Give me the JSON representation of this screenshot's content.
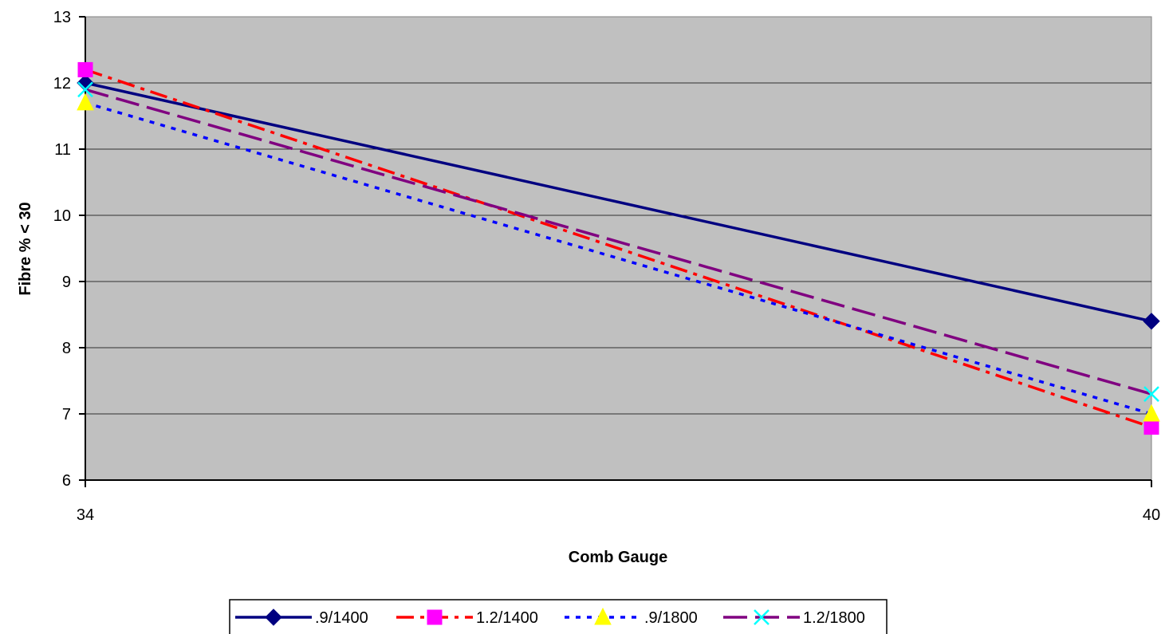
{
  "chart_data": {
    "type": "line",
    "title": "",
    "xlabel": "Comb Gauge",
    "ylabel": "Fibre % < 30",
    "categories": [
      "34",
      "40"
    ],
    "ylim": [
      6,
      13
    ],
    "yticks": [
      6,
      7,
      8,
      9,
      10,
      11,
      12,
      13
    ],
    "grid": true,
    "plot_background": "#c0c0c0",
    "legend_position": "bottom",
    "series": [
      {
        "name": ".9/1400",
        "values": [
          12.0,
          8.4
        ],
        "color": "#000080",
        "dash": "solid",
        "marker": "diamond",
        "marker_color": "#000080"
      },
      {
        "name": "1.2/1400",
        "values": [
          12.2,
          6.8
        ],
        "color": "#ff0000",
        "dash": "dashdot",
        "marker": "square",
        "marker_color": "#ff00ff"
      },
      {
        "name": ".9/1800",
        "values": [
          11.7,
          7.0
        ],
        "color": "#0000ff",
        "dash": "dotted",
        "marker": "triangle",
        "marker_color": "#ffff00"
      },
      {
        "name": "1.2/1800",
        "values": [
          11.9,
          7.3
        ],
        "color": "#800080",
        "dash": "longdash",
        "marker": "x",
        "marker_color": "#00ffff"
      }
    ]
  }
}
